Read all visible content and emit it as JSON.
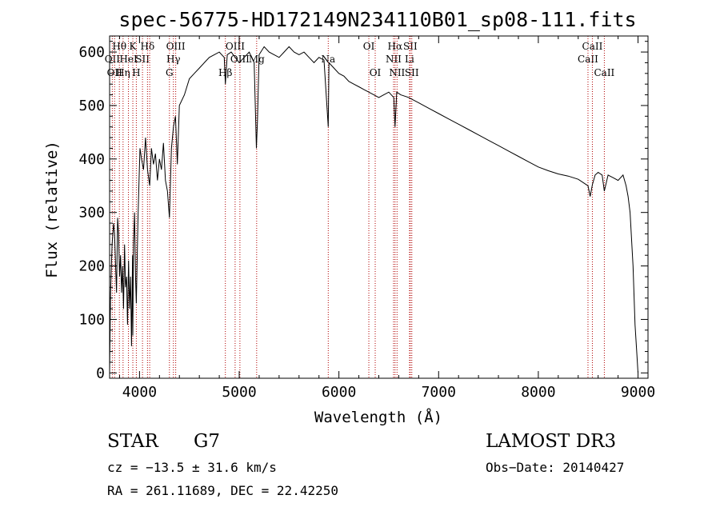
{
  "chart_data": {
    "type": "line",
    "title": "spec-56775-HD172149N234110B01_sp08-111.fits",
    "xlabel": "Wavelength (Å)",
    "ylabel": "Flux (relative)",
    "xlim": [
      3700,
      9100
    ],
    "ylim": [
      -10,
      630
    ],
    "xticks": [
      4000,
      5000,
      6000,
      7000,
      8000,
      9000
    ],
    "xtick_labels": [
      "4000",
      "5000",
      "6000",
      "7000",
      "8000",
      "9000"
    ],
    "yticks": [
      0,
      100,
      200,
      300,
      400,
      500,
      600
    ],
    "ytick_labels": [
      "0",
      "100",
      "200",
      "300",
      "400",
      "500",
      "600"
    ],
    "grid": false,
    "series": [
      {
        "name": "flux",
        "x": [
          3700,
          3710,
          3725,
          3740,
          3750,
          3760,
          3770,
          3780,
          3790,
          3800,
          3810,
          3820,
          3830,
          3840,
          3850,
          3860,
          3870,
          3880,
          3890,
          3900,
          3910,
          3920,
          3930,
          3933,
          3940,
          3950,
          3960,
          3968,
          3975,
          3985,
          3995,
          4005,
          4020,
          4040,
          4060,
          4080,
          4102,
          4120,
          4140,
          4160,
          4180,
          4200,
          4220,
          4240,
          4260,
          4280,
          4300,
          4320,
          4340,
          4360,
          4380,
          4400,
          4450,
          4500,
          4550,
          4600,
          4650,
          4700,
          4750,
          4800,
          4850,
          4861,
          4880,
          4920,
          4960,
          5000,
          5050,
          5100,
          5150,
          5172,
          5183,
          5200,
          5250,
          5300,
          5350,
          5400,
          5450,
          5500,
          5550,
          5600,
          5650,
          5700,
          5750,
          5800,
          5850,
          5893,
          5900,
          5950,
          6000,
          6050,
          6100,
          6150,
          6200,
          6250,
          6300,
          6350,
          6400,
          6450,
          6500,
          6550,
          6563,
          6580,
          6620,
          6700,
          6800,
          6900,
          7000,
          7100,
          7200,
          7300,
          7400,
          7500,
          7600,
          7700,
          7800,
          7900,
          8000,
          8100,
          8200,
          8300,
          8400,
          8498,
          8520,
          8542,
          8570,
          8600,
          8640,
          8662,
          8700,
          8750,
          8800,
          8850,
          8880,
          8900,
          8920,
          8950,
          8970,
          8990,
          9000
        ],
        "values": [
          0,
          150,
          240,
          280,
          260,
          200,
          150,
          290,
          260,
          180,
          220,
          150,
          200,
          120,
          240,
          160,
          180,
          90,
          210,
          120,
          180,
          50,
          220,
          70,
          240,
          300,
          180,
          130,
          200,
          290,
          360,
          420,
          400,
          380,
          440,
          380,
          350,
          420,
          390,
          410,
          360,
          400,
          380,
          430,
          360,
          340,
          290,
          420,
          460,
          480,
          390,
          500,
          520,
          550,
          560,
          570,
          580,
          590,
          595,
          600,
          590,
          540,
          595,
          600,
          590,
          580,
          590,
          600,
          580,
          420,
          470,
          595,
          610,
          600,
          595,
          590,
          600,
          610,
          600,
          595,
          600,
          590,
          580,
          590,
          585,
          460,
          580,
          570,
          560,
          555,
          545,
          540,
          535,
          530,
          525,
          520,
          515,
          520,
          525,
          515,
          460,
          525,
          520,
          515,
          505,
          495,
          485,
          475,
          465,
          455,
          445,
          435,
          425,
          415,
          405,
          395,
          385,
          378,
          372,
          368,
          362,
          350,
          330,
          352,
          370,
          375,
          370,
          340,
          370,
          365,
          360,
          370,
          350,
          330,
          300,
          200,
          90,
          30,
          0
        ]
      }
    ],
    "lines": [
      {
        "x": 3727,
        "labels": [
          "OII"
        ],
        "row": 1
      },
      {
        "x": 3750,
        "labels": [
          "OII"
        ],
        "row": 2
      },
      {
        "x": 3798,
        "labels": [
          "Hθ"
        ],
        "row": 0
      },
      {
        "x": 3835,
        "labels": [
          "Hη"
        ],
        "row": 2
      },
      {
        "x": 3889,
        "labels": [
          "HeI"
        ],
        "row": 1
      },
      {
        "x": 3933,
        "labels": [
          "K"
        ],
        "row": 0
      },
      {
        "x": 3968,
        "labels": [
          "H"
        ],
        "row": 2
      },
      {
        "x": 4030,
        "labels": [
          "SII"
        ],
        "row": 1
      },
      {
        "x": 4080,
        "labels": [
          "Hδ"
        ],
        "row": 0
      },
      {
        "x": 4102,
        "labels": [
          ""
        ],
        "row": 0
      },
      {
        "x": 4300,
        "labels": [
          "G"
        ],
        "row": 2
      },
      {
        "x": 4340,
        "labels": [
          "Hγ"
        ],
        "row": 1
      },
      {
        "x": 4363,
        "labels": [
          "OIII"
        ],
        "row": 0
      },
      {
        "x": 4861,
        "labels": [
          "Hβ"
        ],
        "row": 2
      },
      {
        "x": 4959,
        "labels": [
          "OIII"
        ],
        "row": 0
      },
      {
        "x": 5007,
        "labels": [
          "OIII"
        ],
        "row": 1
      },
      {
        "x": 5175,
        "labels": [
          "Mg"
        ],
        "row": 1
      },
      {
        "x": 5893,
        "labels": [
          "Na"
        ],
        "row": 1
      },
      {
        "x": 6300,
        "labels": [
          "OI"
        ],
        "row": 0
      },
      {
        "x": 6364,
        "labels": [
          "OI"
        ],
        "row": 2
      },
      {
        "x": 6548,
        "labels": [
          "NII"
        ],
        "row": 1
      },
      {
        "x": 6563,
        "labels": [
          "Hα"
        ],
        "row": 0
      },
      {
        "x": 6583,
        "labels": [
          "NII"
        ],
        "row": 2
      },
      {
        "x": 6716,
        "labels": [
          "SII"
        ],
        "row": 0
      },
      {
        "x": 6708,
        "labels": [
          "Li"
        ],
        "row": 1
      },
      {
        "x": 6731,
        "labels": [
          "SII"
        ],
        "row": 2
      },
      {
        "x": 8498,
        "labels": [
          "CaII"
        ],
        "row": 1
      },
      {
        "x": 8542,
        "labels": [
          "CaII"
        ],
        "row": 0
      },
      {
        "x": 8662,
        "labels": [
          "CaII"
        ],
        "row": 2
      }
    ],
    "line_color": "#b00000"
  },
  "info": {
    "object_class": "STAR",
    "subclass": "G7",
    "survey": "LAMOST DR3",
    "redshift": "cz = −13.5 ± 31.6 km/s",
    "obs_date": "Obs−Date: 20140427",
    "coords": "RA = 261.11689, DEC =  22.42250"
  }
}
